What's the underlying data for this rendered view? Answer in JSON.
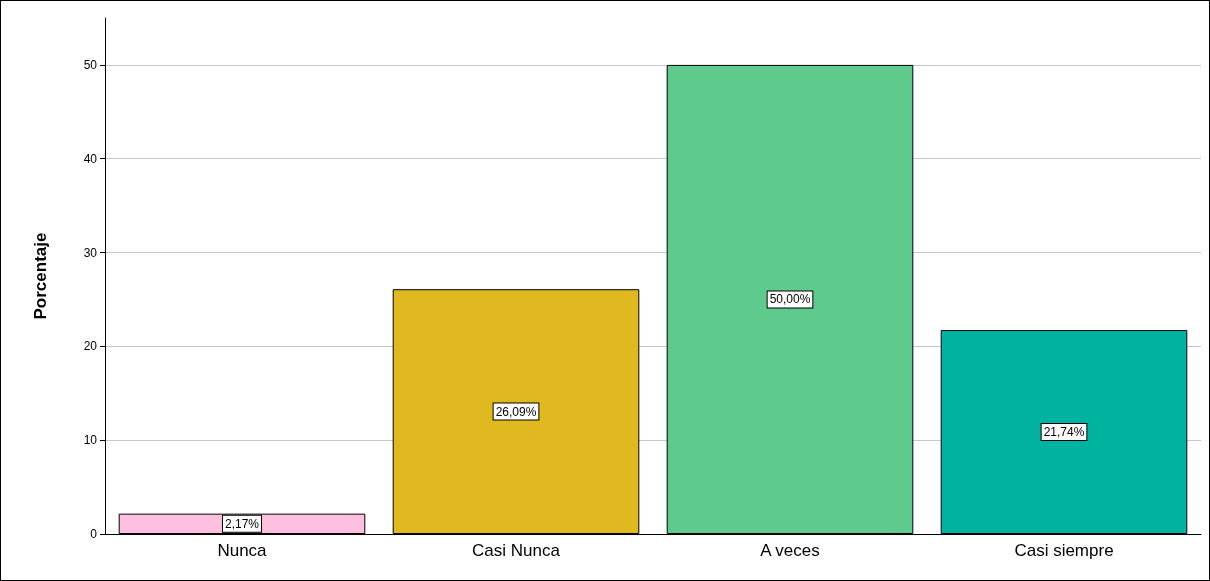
{
  "chart_data": {
    "type": "bar",
    "ylabel": "Porcentaje",
    "categories": [
      "Nunca",
      "Casi Nunca",
      "A veces",
      "Casi siempre"
    ],
    "values": [
      2.17,
      26.09,
      50.0,
      21.74
    ],
    "colors": [
      "#ffc0e0",
      "#dfb91f",
      "#5ecb8c",
      "#00b2a0"
    ],
    "value_labels": [
      "2,17%",
      "26,09%",
      "50,00%",
      "21,74%"
    ],
    "ylim": [
      0,
      55
    ],
    "yticks": [
      0,
      10,
      20,
      30,
      40,
      50
    ],
    "grid": "y"
  }
}
